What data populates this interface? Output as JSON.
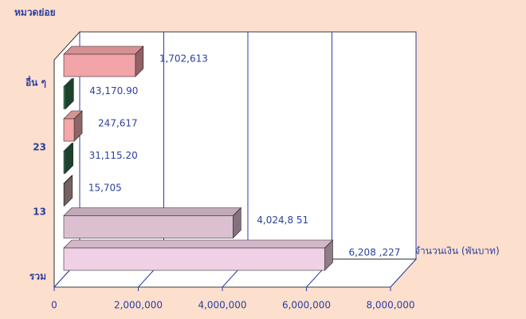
{
  "chart_data": {
    "type": "bar",
    "orientation": "horizontal",
    "y_label": "หมวดย่อย",
    "x_label": "จำนวนเงิน (พันบาท)",
    "categories": [
      "รวม",
      null,
      "13",
      null,
      "23",
      null,
      "อื่น ๆ"
    ],
    "values": [
      6208227,
      4024851,
      15705,
      31115.2,
      247617,
      43170.9,
      1702613
    ],
    "value_labels": [
      "6,208 ,227",
      "4,024,8 51",
      "15,705",
      "31,115.20",
      "247,617",
      "43,170.90",
      "1,702,613"
    ],
    "colors": [
      "#f0d0e4",
      "#dcc0d2",
      "#c4a4a4",
      "#2f6e4c",
      "#f4a8a8",
      "#2f6e4c",
      "#f2a4a8"
    ],
    "xlim": [
      0,
      8000000
    ],
    "xticks": [
      0,
      {
        "value": 2000000,
        "label": "2,000,000"
      },
      {
        "value": 4000000,
        "label": "4,000,000"
      },
      {
        "value": 6000000,
        "label": "6,000,000"
      },
      {
        "value": 8000000,
        "label": "8,000,000"
      }
    ],
    "grid": true
  }
}
